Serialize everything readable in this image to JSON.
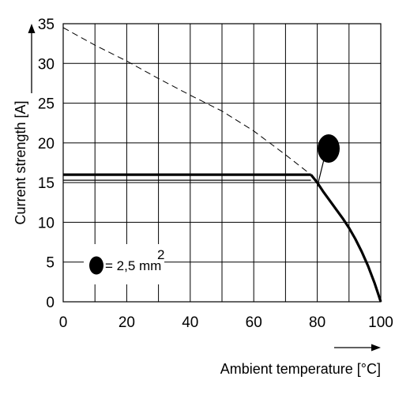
{
  "chart_data": {
    "type": "line",
    "title": "",
    "xlabel": "Ambient temperature [°C]",
    "ylabel": "Current strength [A]",
    "xlim": [
      0,
      100
    ],
    "ylim": [
      0,
      35
    ],
    "xticks": [
      0,
      20,
      40,
      60,
      80,
      100
    ],
    "yticks": [
      0,
      5,
      10,
      15,
      20,
      25,
      30,
      35
    ],
    "x_gridlines": [
      0,
      10,
      20,
      30,
      40,
      50,
      60,
      70,
      80,
      90,
      100
    ],
    "y_gridlines": [
      0,
      5,
      10,
      15,
      20,
      25,
      30,
      35
    ],
    "grid": true,
    "series": [
      {
        "style": "solid-thick",
        "x": [
          0,
          78
        ],
        "y": [
          16,
          16
        ]
      },
      {
        "style": "solid-thick",
        "x": [
          78,
          80,
          82,
          84,
          86,
          88,
          90,
          92,
          94,
          96,
          98,
          99,
          100
        ],
        "y": [
          16,
          15,
          13.8,
          12.7,
          11.6,
          10.5,
          9.3,
          7.9,
          6.3,
          4.5,
          2.4,
          1.2,
          0
        ]
      },
      {
        "style": "dashed",
        "x": [
          0,
          10,
          20,
          30,
          40,
          50,
          60,
          70,
          78
        ],
        "y": [
          34.5,
          32.3,
          30.3,
          28.1,
          26,
          24,
          21.5,
          18.5,
          16
        ]
      }
    ],
    "thin_line": {
      "x": [
        0,
        78
      ],
      "y": [
        15.3,
        15.3
      ]
    },
    "callout": {
      "label": "1",
      "from": [
        80,
        14.5
      ]
    },
    "legend": {
      "marker": "1",
      "text": "= 2,5 mm",
      "superscript": "2",
      "placement": "bottom-left"
    }
  }
}
